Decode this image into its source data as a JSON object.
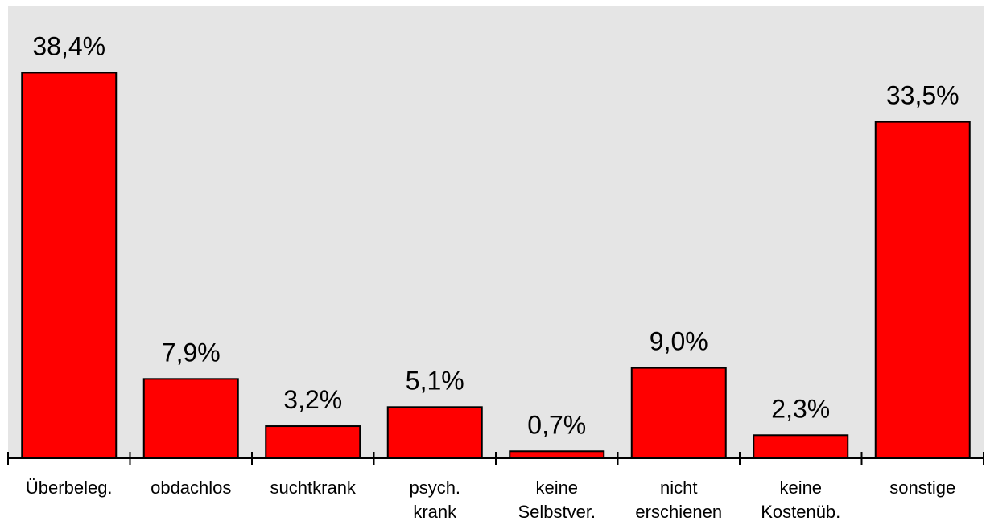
{
  "chart_data": {
    "type": "bar",
    "categories": [
      "Überbeleg.",
      "obdachlos",
      "suchtkrank",
      "psych.\nkrank",
      "keine\nSelbstver.",
      "nicht\nerschienen",
      "keine\nKostenüb.",
      "sonstige"
    ],
    "values": [
      38.4,
      7.9,
      3.2,
      5.1,
      0.7,
      9.0,
      2.3,
      33.5
    ],
    "value_labels": [
      "38,4%",
      "7,9%",
      "3,2%",
      "5,1%",
      "0,7%",
      "9,0%",
      "2,3%",
      "33,5%"
    ],
    "color": "#ff0000",
    "ylim": [
      0,
      45
    ]
  }
}
